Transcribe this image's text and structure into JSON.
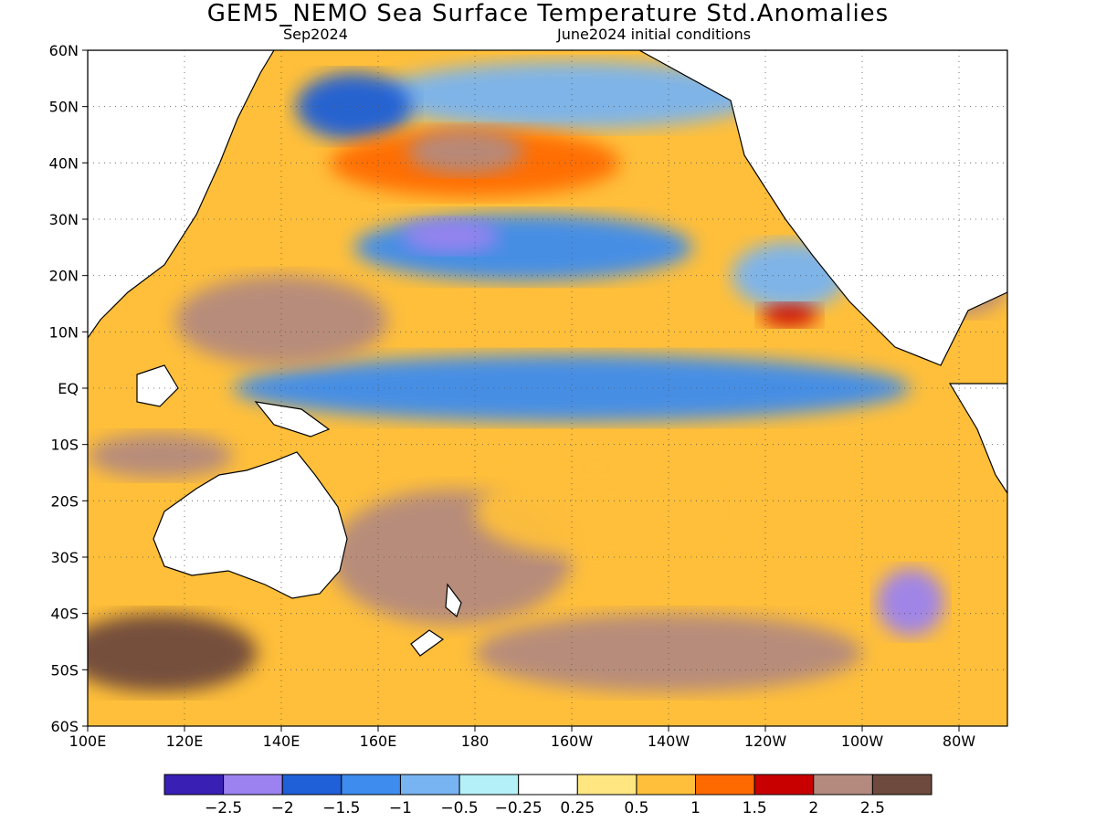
{
  "title": "GEM5_NEMO Sea Surface Temperature Std.Anomalies",
  "subtitle_left": "Sep2024",
  "subtitle_right": "June2024 initial conditions",
  "map": {
    "lon_range": [
      100,
      290
    ],
    "lat_range": [
      -60,
      60
    ],
    "lat_ticks": [
      "60N",
      "50N",
      "40N",
      "30N",
      "20N",
      "10N",
      "EQ",
      "10S",
      "20S",
      "30S",
      "40S",
      "50S",
      "60S"
    ],
    "lon_ticks": [
      "100E",
      "120E",
      "140E",
      "160E",
      "180",
      "160W",
      "140W",
      "120W",
      "100W",
      "80W"
    ],
    "grid": "dotted"
  },
  "colorbar": {
    "colors": [
      "#3a1fb5",
      "#9b82f0",
      "#1f5fd8",
      "#3d8cee",
      "#78b4f2",
      "#b4f0f8",
      "#ffffff",
      "#ffe680",
      "#ffbf3a",
      "#ff6a00",
      "#c80000",
      "#b48a7e",
      "#6e4a3e"
    ],
    "labels": [
      "−2.5",
      "−2",
      "−1.5",
      "−1",
      "−0.5",
      "−0.25",
      "0.25",
      "0.5",
      "1",
      "1.5",
      "2",
      "2.5"
    ]
  },
  "anomaly_regions": [
    {
      "lon": 200,
      "lat": 0,
      "rx": 70,
      "ry": 6,
      "val": -1.2
    },
    {
      "lon": 190,
      "lat": 25,
      "rx": 35,
      "ry": 6,
      "val": -1.3
    },
    {
      "lon": 175,
      "lat": 27,
      "rx": 10,
      "ry": 3,
      "val": -2.1
    },
    {
      "lon": 200,
      "lat": 52,
      "rx": 40,
      "ry": 6,
      "val": -1.0
    },
    {
      "lon": 155,
      "lat": 50,
      "rx": 12,
      "ry": 6,
      "val": -1.6
    },
    {
      "lon": 270,
      "lat": -38,
      "rx": 7,
      "ry": 6,
      "val": -2.2
    },
    {
      "lon": 245,
      "lat": 20,
      "rx": 12,
      "ry": 6,
      "val": -0.8
    },
    {
      "lon": 180,
      "lat": 40,
      "rx": 30,
      "ry": 6,
      "val": 1.4
    },
    {
      "lon": 178,
      "lat": 42,
      "rx": 12,
      "ry": 4,
      "val": 2.2
    },
    {
      "lon": 140,
      "lat": 12,
      "rx": 22,
      "ry": 8,
      "val": 2.4
    },
    {
      "lon": 115,
      "lat": -12,
      "rx": 15,
      "ry": 4,
      "val": 2.0
    },
    {
      "lon": 175,
      "lat": -30,
      "rx": 25,
      "ry": 12,
      "val": 2.1
    },
    {
      "lon": 220,
      "lat": -47,
      "rx": 40,
      "ry": 7,
      "val": 2.1
    },
    {
      "lon": 115,
      "lat": -47,
      "rx": 20,
      "ry": 7,
      "val": 2.6
    },
    {
      "lon": 205,
      "lat": -22,
      "rx": 25,
      "ry": 8,
      "val": 0.9
    },
    {
      "lon": 245,
      "lat": 13,
      "rx": 6,
      "ry": 2,
      "val": 1.6
    },
    {
      "lon": 280,
      "lat": 18,
      "rx": 10,
      "ry": 5,
      "val": 2.4
    }
  ]
}
